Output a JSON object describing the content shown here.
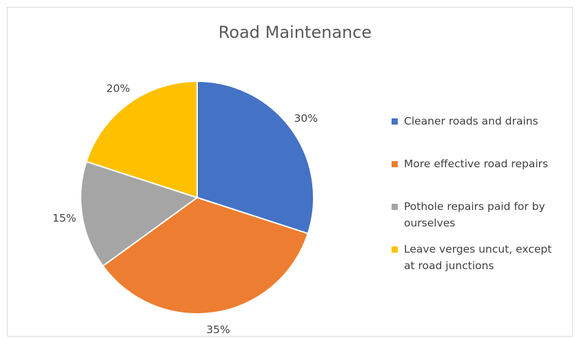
{
  "chart_data": {
    "type": "pie",
    "title": "Road Maintenance",
    "categories": [
      "Cleaner roads and drains",
      "More effective road repairs",
      "Pothole repairs paid for by ourselves",
      "Leave verges uncut, except at road junctions"
    ],
    "values": [
      30,
      35,
      15,
      20
    ],
    "value_labels": [
      "30%",
      "35%",
      "15%",
      "20%"
    ],
    "colors": [
      "#4472c4",
      "#ed7d31",
      "#a5a5a5",
      "#ffc000"
    ],
    "legend": "right"
  }
}
